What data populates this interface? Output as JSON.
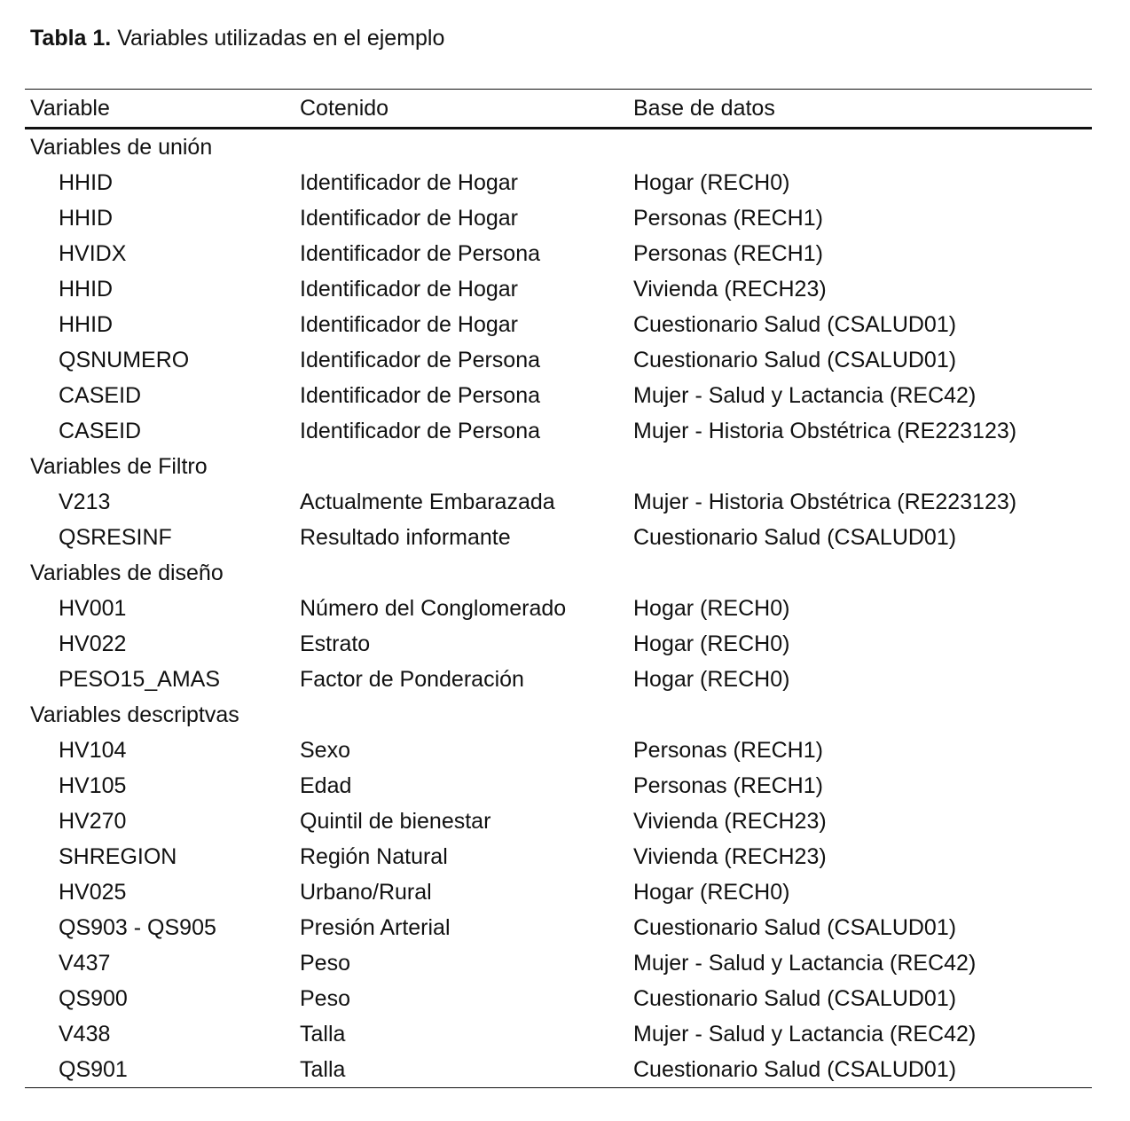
{
  "caption": {
    "label": "Tabla 1.",
    "text": " Variables utilizadas en el ejemplo"
  },
  "table": {
    "headers": [
      "Variable",
      "Cotenido",
      "Base de datos"
    ],
    "groups": [
      {
        "title": "Variables de unión",
        "rows": [
          [
            "HHID",
            "Identificador de Hogar",
            "Hogar (RECH0)"
          ],
          [
            "HHID",
            "Identificador de Hogar",
            "Personas (RECH1)"
          ],
          [
            "HVIDX",
            "Identificador de Persona",
            "Personas (RECH1)"
          ],
          [
            "HHID",
            "Identificador de Hogar",
            "Vivienda (RECH23)"
          ],
          [
            "HHID",
            "Identificador de Hogar",
            "Cuestionario Salud (CSALUD01)"
          ],
          [
            "QSNUMERO",
            "Identificador de Persona",
            "Cuestionario Salud (CSALUD01)"
          ],
          [
            "CASEID",
            "Identificador de Persona",
            "Mujer -  Salud y Lactancia (REC42)"
          ],
          [
            "CASEID",
            "Identificador de Persona",
            "Mujer -  Historia Obstétrica (RE223123)"
          ]
        ]
      },
      {
        "title": "Variables de Filtro",
        "rows": [
          [
            "V213",
            "Actualmente Embarazada",
            "Mujer -  Historia Obstétrica (RE223123)"
          ],
          [
            "QSRESINF",
            "Resultado informante",
            "Cuestionario Salud (CSALUD01)"
          ]
        ]
      },
      {
        "title": "Variables de diseño",
        "rows": [
          [
            "HV001",
            "Número del Conglomerado",
            "Hogar (RECH0)"
          ],
          [
            "HV022",
            "Estrato",
            "Hogar (RECH0)"
          ],
          [
            "PESO15_AMAS",
            "Factor de Ponderación",
            "Hogar (RECH0)"
          ]
        ]
      },
      {
        "title": "Variables descriptvas",
        "rows": [
          [
            "HV104",
            "Sexo",
            "Personas (RECH1)"
          ],
          [
            "HV105",
            "Edad",
            "Personas (RECH1)"
          ],
          [
            "HV270",
            "Quintil de bienestar",
            "Vivienda (RECH23)"
          ],
          [
            "SHREGION",
            "Región Natural",
            "Vivienda (RECH23)"
          ],
          [
            "HV025",
            "Urbano/Rural",
            "Hogar (RECH0)"
          ],
          [
            "QS903 - QS905",
            "Presión Arterial",
            "Cuestionario Salud (CSALUD01)"
          ],
          [
            "V437",
            "Peso",
            "Mujer -  Salud y Lactancia (REC42)"
          ],
          [
            "QS900",
            "Peso",
            "Cuestionario Salud (CSALUD01)"
          ],
          [
            "V438",
            "Talla",
            "Mujer -  Salud y Lactancia (REC42)"
          ],
          [
            "QS901",
            "Talla",
            "Cuestionario Salud (CSALUD01)"
          ]
        ]
      }
    ]
  }
}
